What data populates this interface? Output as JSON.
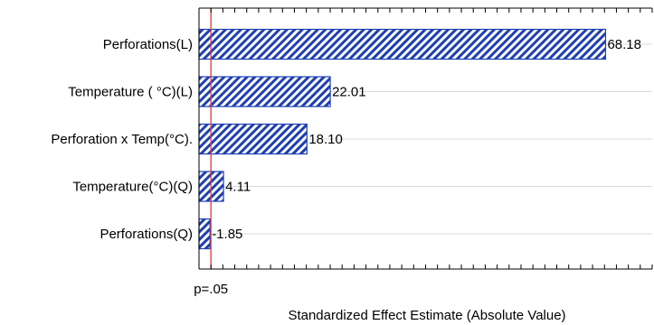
{
  "chart_data": {
    "type": "bar",
    "orientation": "horizontal",
    "categories": [
      "Perforations(L)",
      "Temperature ( °C)(L)",
      "Perforation x Temp(°C).",
      "Temperature(°C)(Q)",
      "Perforations(Q)"
    ],
    "values": [
      68.18,
      22.01,
      18.1,
      4.11,
      1.85
    ],
    "value_labels": [
      "68.18",
      "22.01",
      "18.10",
      "4.11",
      "-1.85"
    ],
    "xlabel": "Standardized Effect Estimate (Absolute Value)",
    "ylabel": "",
    "title": "",
    "xlim": [
      0,
      76
    ],
    "reference_line": {
      "value": 2.0,
      "label": "p=.05",
      "color": "#e03a3a"
    },
    "bar_fill": "hatched-diagonal",
    "bar_color": "#1f3fb0",
    "grid": {
      "horizontal": true,
      "color": "#d9d9d9"
    },
    "tick_labels_x": "none"
  }
}
